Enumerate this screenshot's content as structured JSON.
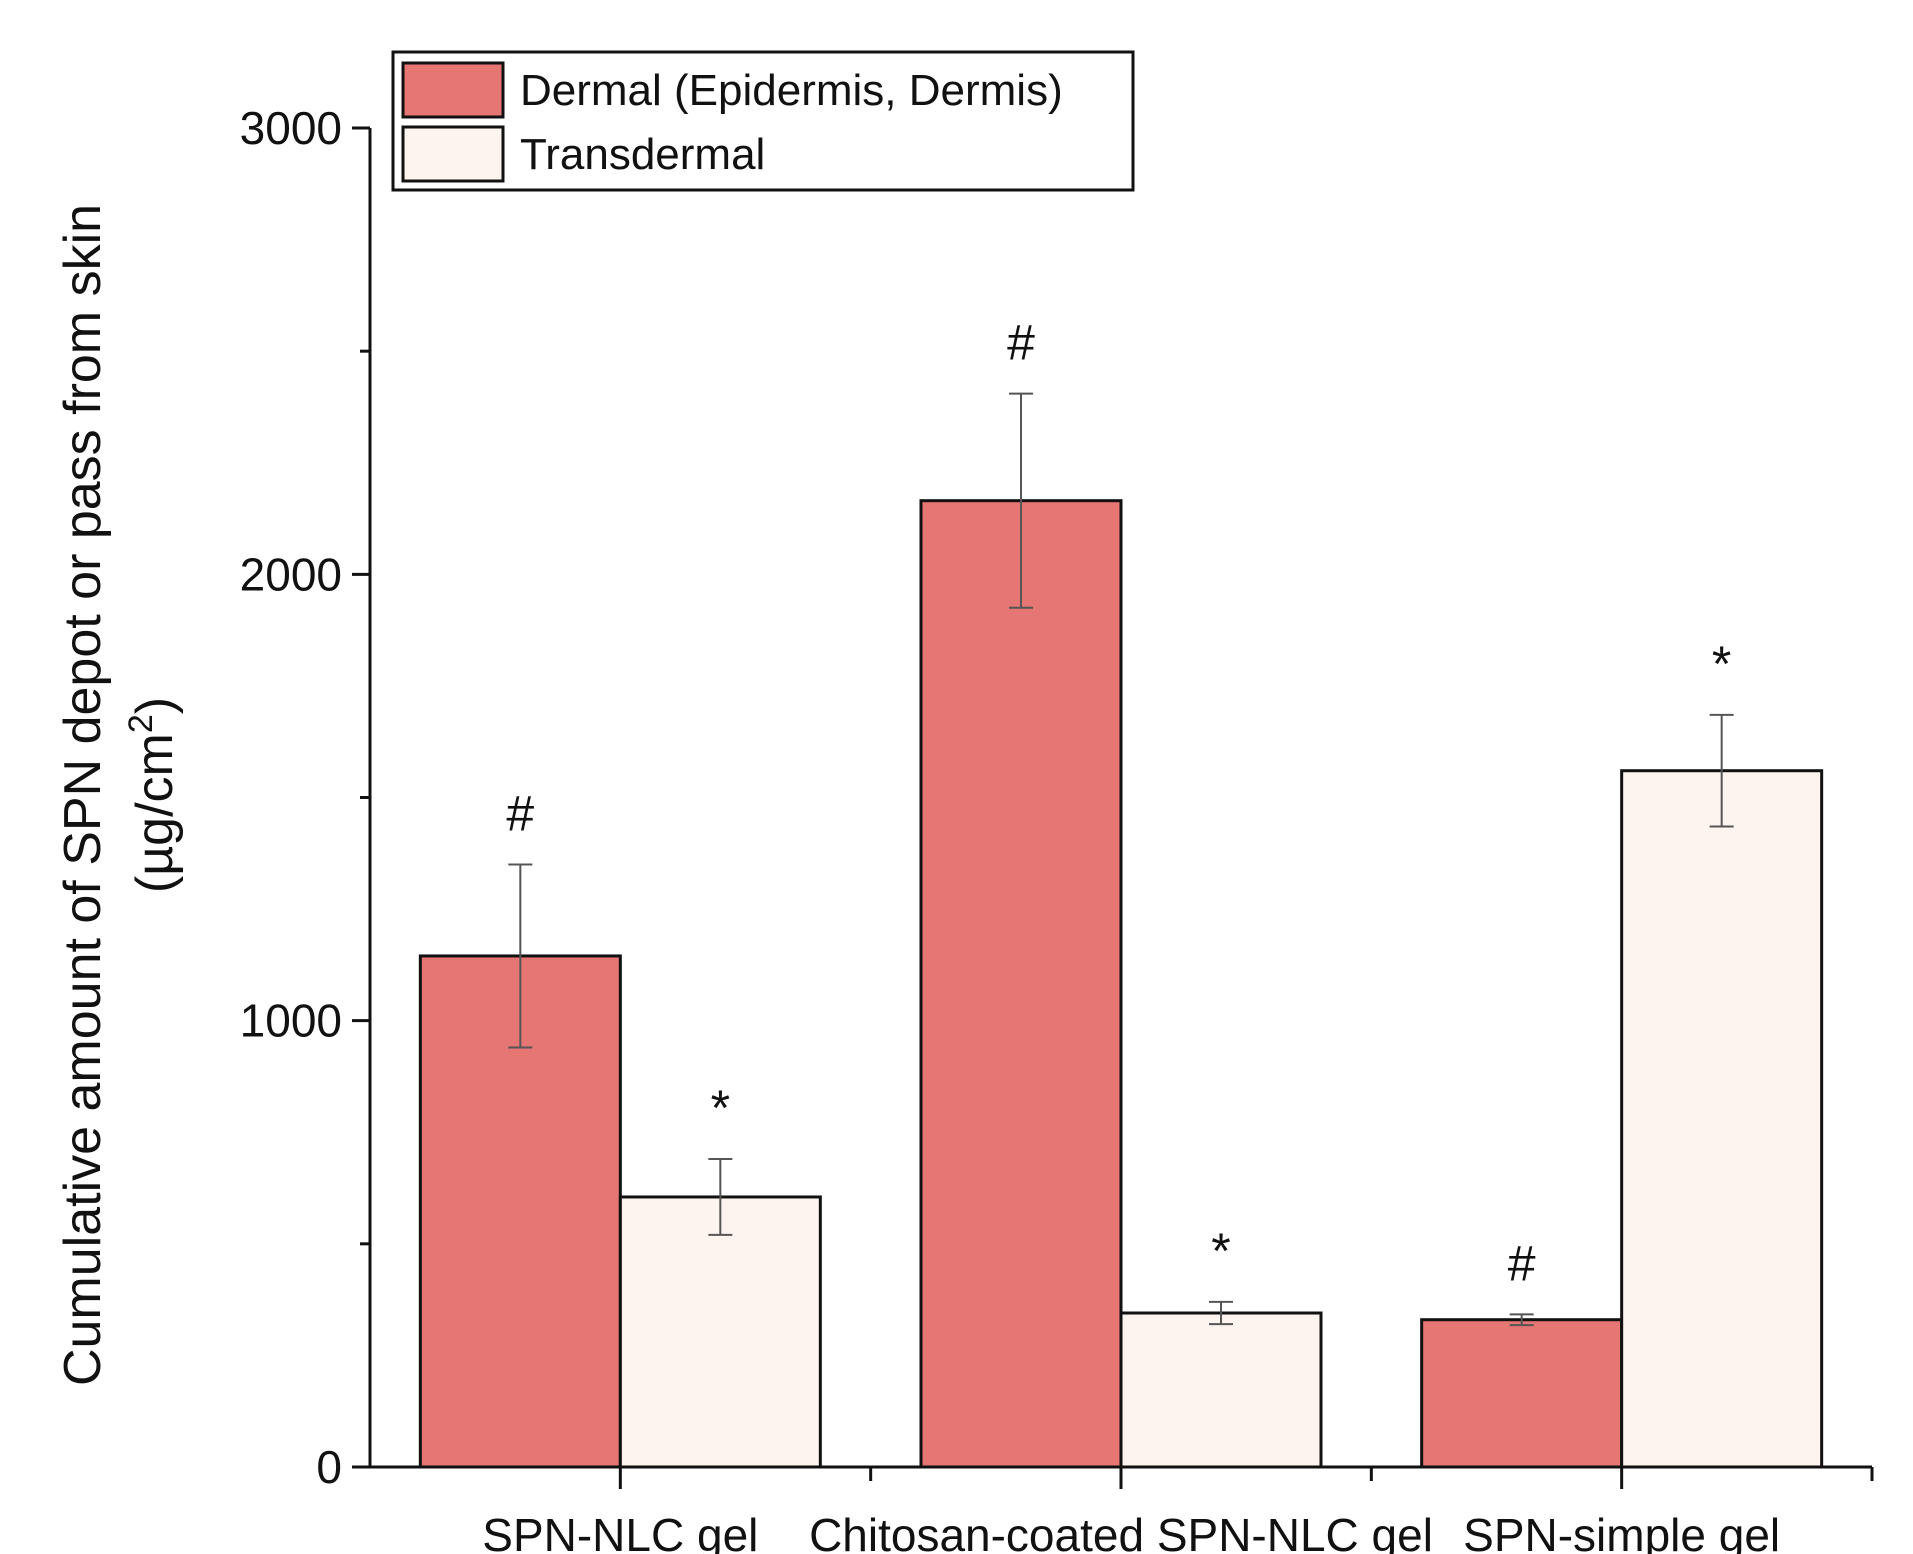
{
  "chart_data": {
    "type": "bar",
    "categories": [
      "SPN-NLC gel",
      "Chitosan-coated SPN-NLC gel",
      "SPN-simple gel"
    ],
    "series": [
      {
        "name": "Dermal (Epidermis, Dermis)",
        "color": "#e57673",
        "values": [
          1145,
          2165,
          330
        ],
        "errors": [
          205,
          240,
          12
        ],
        "annotations": [
          "#",
          "#",
          "#"
        ]
      },
      {
        "name": "Transdermal",
        "color": "#fdf4ef",
        "values": [
          605,
          345,
          1560
        ],
        "errors": [
          85,
          25,
          125
        ],
        "annotations": [
          "*",
          "*",
          "*"
        ]
      }
    ],
    "ylabel_line1": "Cumulative amount of SPN depot or pass from skin",
    "ylabel_line2_prefix": "(µg/cm",
    "ylabel_line2_sup": "2",
    "ylabel_line2_suffix": ")",
    "xlabel": "",
    "ylim": [
      0,
      3000
    ],
    "yticks": [
      0,
      1000,
      2000,
      3000
    ],
    "legend_position": "top-left"
  }
}
